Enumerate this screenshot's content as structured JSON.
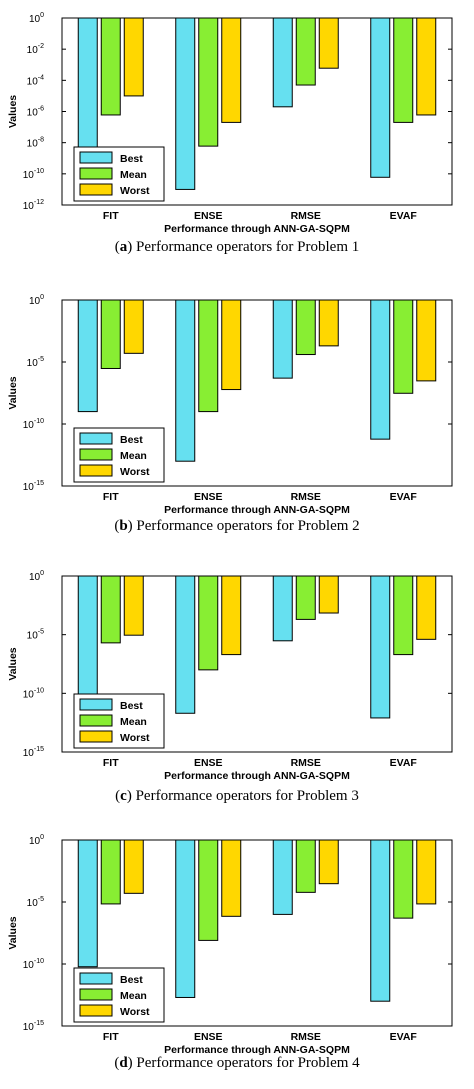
{
  "chart_data": [
    {
      "type": "bar",
      "scale": "log",
      "caption_letter": "a",
      "caption_text": "Performance operators for Problem 1",
      "xlabel": "Performance through ANN-GA-SQPM",
      "ylabel": "Values",
      "categories": [
        "FIT",
        "ENSE",
        "RMSE",
        "EVAF"
      ],
      "series": [
        {
          "name": "Best",
          "color": "#66e0f0",
          "values": [
            3e-09,
            1e-11,
            2e-06,
            6e-11
          ]
        },
        {
          "name": "Mean",
          "color": "#88ee33",
          "values": [
            6e-07,
            6e-09,
            5e-05,
            2e-07
          ]
        },
        {
          "name": "Worst",
          "color": "#ffd700",
          "values": [
            1e-05,
            2e-07,
            0.0006,
            6e-07
          ]
        }
      ],
      "ylim": [
        1e-12,
        1
      ],
      "yticks": [
        {
          "base": "10",
          "exp": "0"
        },
        {
          "base": "10",
          "exp": "-2"
        },
        {
          "base": "10",
          "exp": "-4"
        },
        {
          "base": "10",
          "exp": "-6"
        },
        {
          "base": "10",
          "exp": "-8"
        },
        {
          "base": "10",
          "exp": "-10"
        },
        {
          "base": "10",
          "exp": "-12"
        }
      ],
      "legend_position": "bottom-left"
    },
    {
      "type": "bar",
      "scale": "log",
      "caption_letter": "b",
      "caption_text": "Performance operators for Problem 2",
      "xlabel": "Performance through ANN-GA-SQPM",
      "ylabel": "Values",
      "categories": [
        "FIT",
        "ENSE",
        "RMSE",
        "EVAF"
      ],
      "series": [
        {
          "name": "Best",
          "color": "#66e0f0",
          "values": [
            1e-09,
            1e-13,
            5e-07,
            6e-12
          ]
        },
        {
          "name": "Mean",
          "color": "#88ee33",
          "values": [
            3e-06,
            1e-09,
            4e-05,
            3e-08
          ]
        },
        {
          "name": "Worst",
          "color": "#ffd700",
          "values": [
            5e-05,
            6e-08,
            0.0002,
            3e-07
          ]
        }
      ],
      "ylim": [
        1e-15,
        1
      ],
      "yticks": [
        {
          "base": "10",
          "exp": "0"
        },
        {
          "base": "10",
          "exp": "-5"
        },
        {
          "base": "10",
          "exp": "-10"
        },
        {
          "base": "10",
          "exp": "-15"
        }
      ],
      "legend_position": "bottom-left"
    },
    {
      "type": "bar",
      "scale": "log",
      "caption_letter": "c",
      "caption_text": "Performance operators for Problem 3",
      "xlabel": "Performance through ANN-GA-SQPM",
      "ylabel": "Values",
      "categories": [
        "FIT",
        "ENSE",
        "RMSE",
        "EVAF"
      ],
      "series": [
        {
          "name": "Best",
          "color": "#66e0f0",
          "values": [
            6e-11,
            2e-12,
            3e-06,
            8e-13
          ]
        },
        {
          "name": "Mean",
          "color": "#88ee33",
          "values": [
            2e-06,
            1e-08,
            0.0002,
            2e-07
          ]
        },
        {
          "name": "Worst",
          "color": "#ffd700",
          "values": [
            9e-06,
            2e-07,
            0.0007,
            4e-06
          ]
        }
      ],
      "ylim": [
        1e-15,
        1
      ],
      "yticks": [
        {
          "base": "10",
          "exp": "0"
        },
        {
          "base": "10",
          "exp": "-5"
        },
        {
          "base": "10",
          "exp": "-10"
        },
        {
          "base": "10",
          "exp": "-15"
        }
      ],
      "legend_position": "bottom-left"
    },
    {
      "type": "bar",
      "scale": "log",
      "caption_letter": "d",
      "caption_text": "Performance operators for Problem 4",
      "xlabel": "Performance through ANN-GA-SQPM",
      "ylabel": "Values",
      "categories": [
        "FIT",
        "ENSE",
        "RMSE",
        "EVAF"
      ],
      "series": [
        {
          "name": "Best",
          "color": "#66e0f0",
          "values": [
            6e-11,
            2e-13,
            1e-06,
            1e-13
          ]
        },
        {
          "name": "Mean",
          "color": "#88ee33",
          "values": [
            7e-06,
            8e-09,
            6e-05,
            5e-07
          ]
        },
        {
          "name": "Worst",
          "color": "#ffd700",
          "values": [
            5e-05,
            7e-07,
            0.0003,
            7e-06
          ]
        }
      ],
      "ylim": [
        1e-15,
        1
      ],
      "yticks": [
        {
          "base": "10",
          "exp": "0"
        },
        {
          "base": "10",
          "exp": "-5"
        },
        {
          "base": "10",
          "exp": "-10"
        },
        {
          "base": "10",
          "exp": "-15"
        }
      ],
      "legend_position": "bottom-left"
    }
  ]
}
